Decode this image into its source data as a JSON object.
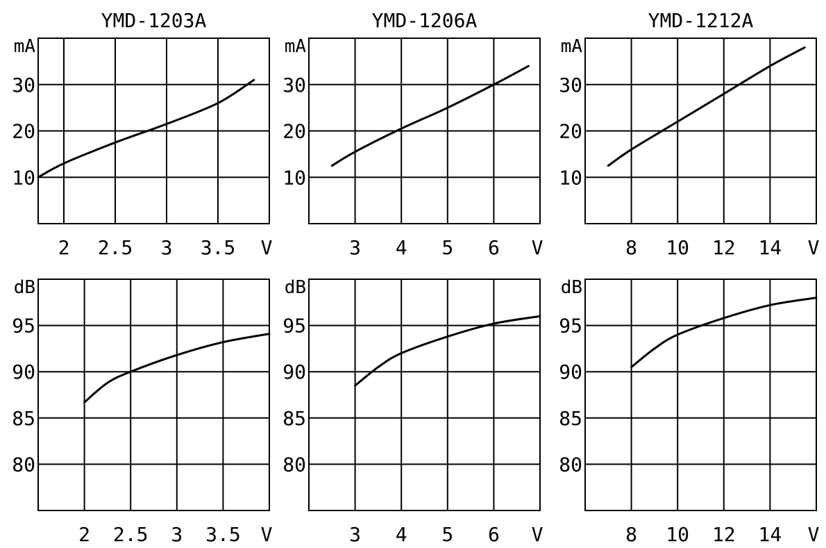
{
  "chart_data": [
    {
      "type": "line",
      "title": "YMD-1203A",
      "ylabel": "mA",
      "xlabel": "V",
      "x_ticks": [
        "2",
        "2.5",
        "3",
        "3.5"
      ],
      "x_tick_values": [
        2,
        2.5,
        3,
        3.5
      ],
      "xlim": [
        1.75,
        4.0
      ],
      "y_ticks": [
        "10",
        "20",
        "30"
      ],
      "y_tick_values": [
        10,
        20,
        30
      ],
      "ylim": [
        0,
        40
      ],
      "grid": true,
      "series": [
        {
          "x": [
            1.75,
            2.0,
            2.5,
            3.0,
            3.5,
            3.85
          ],
          "y": [
            10,
            13,
            17.5,
            21.5,
            26,
            31
          ]
        }
      ]
    },
    {
      "type": "line",
      "title": "YMD-1206A",
      "ylabel": "mA",
      "xlabel": "V",
      "x_ticks": [
        "3",
        "4",
        "5",
        "6"
      ],
      "x_tick_values": [
        3,
        4,
        5,
        6
      ],
      "xlim": [
        2.0,
        7.0
      ],
      "y_ticks": [
        "10",
        "20",
        "30"
      ],
      "y_tick_values": [
        10,
        20,
        30
      ],
      "ylim": [
        0,
        40
      ],
      "grid": true,
      "series": [
        {
          "x": [
            2.5,
            3.0,
            4.0,
            5.0,
            6.0,
            6.75
          ],
          "y": [
            12.5,
            15.5,
            20.5,
            25,
            30,
            34
          ]
        }
      ]
    },
    {
      "type": "line",
      "title": "YMD-1212A",
      "ylabel": "mA",
      "xlabel": "V",
      "x_ticks": [
        "8",
        "10",
        "12",
        "14"
      ],
      "x_tick_values": [
        8,
        10,
        12,
        14
      ],
      "xlim": [
        6.0,
        16.0
      ],
      "y_ticks": [
        "10",
        "20",
        "30"
      ],
      "y_tick_values": [
        10,
        20,
        30
      ],
      "ylim": [
        0,
        40
      ],
      "grid": true,
      "series": [
        {
          "x": [
            7.0,
            8.0,
            10.0,
            12.0,
            14.0,
            15.5
          ],
          "y": [
            12.5,
            16,
            22,
            28,
            34,
            38
          ]
        }
      ]
    },
    {
      "type": "line",
      "title": "",
      "ylabel": "dB",
      "xlabel": "V",
      "x_ticks": [
        "2",
        "2.5",
        "3",
        "3.5"
      ],
      "x_tick_values": [
        2,
        2.5,
        3,
        3.5
      ],
      "xlim": [
        1.5,
        4.0
      ],
      "y_ticks": [
        "80",
        "85",
        "90",
        "95"
      ],
      "y_tick_values": [
        80,
        85,
        90,
        95
      ],
      "ylim": [
        75,
        100
      ],
      "grid": true,
      "series": [
        {
          "x": [
            2.0,
            2.25,
            2.5,
            3.0,
            3.5,
            4.0
          ],
          "y": [
            86.7,
            88.8,
            90,
            91.8,
            93.2,
            94.1
          ]
        }
      ]
    },
    {
      "type": "line",
      "title": "",
      "ylabel": "dB",
      "xlabel": "V",
      "x_ticks": [
        "3",
        "4",
        "5",
        "6"
      ],
      "x_tick_values": [
        3,
        4,
        5,
        6
      ],
      "xlim": [
        2.0,
        7.0
      ],
      "y_ticks": [
        "80",
        "85",
        "90",
        "95"
      ],
      "y_tick_values": [
        80,
        85,
        90,
        95
      ],
      "ylim": [
        75,
        100
      ],
      "grid": true,
      "series": [
        {
          "x": [
            3.0,
            3.5,
            4.0,
            5.0,
            6.0,
            7.0
          ],
          "y": [
            88.5,
            90.5,
            92,
            93.8,
            95.2,
            96
          ]
        }
      ]
    },
    {
      "type": "line",
      "title": "",
      "ylabel": "dB",
      "xlabel": "V",
      "x_ticks": [
        "8",
        "10",
        "12",
        "14"
      ],
      "x_tick_values": [
        8,
        10,
        12,
        14
      ],
      "xlim": [
        6.0,
        16.0
      ],
      "y_ticks": [
        "80",
        "85",
        "90",
        "95"
      ],
      "y_tick_values": [
        80,
        85,
        90,
        95
      ],
      "ylim": [
        75,
        100
      ],
      "grid": true,
      "series": [
        {
          "x": [
            8.0,
            9.0,
            10.0,
            12.0,
            14.0,
            16.0
          ],
          "y": [
            90.5,
            92.5,
            94,
            95.8,
            97.2,
            98
          ]
        }
      ]
    }
  ]
}
